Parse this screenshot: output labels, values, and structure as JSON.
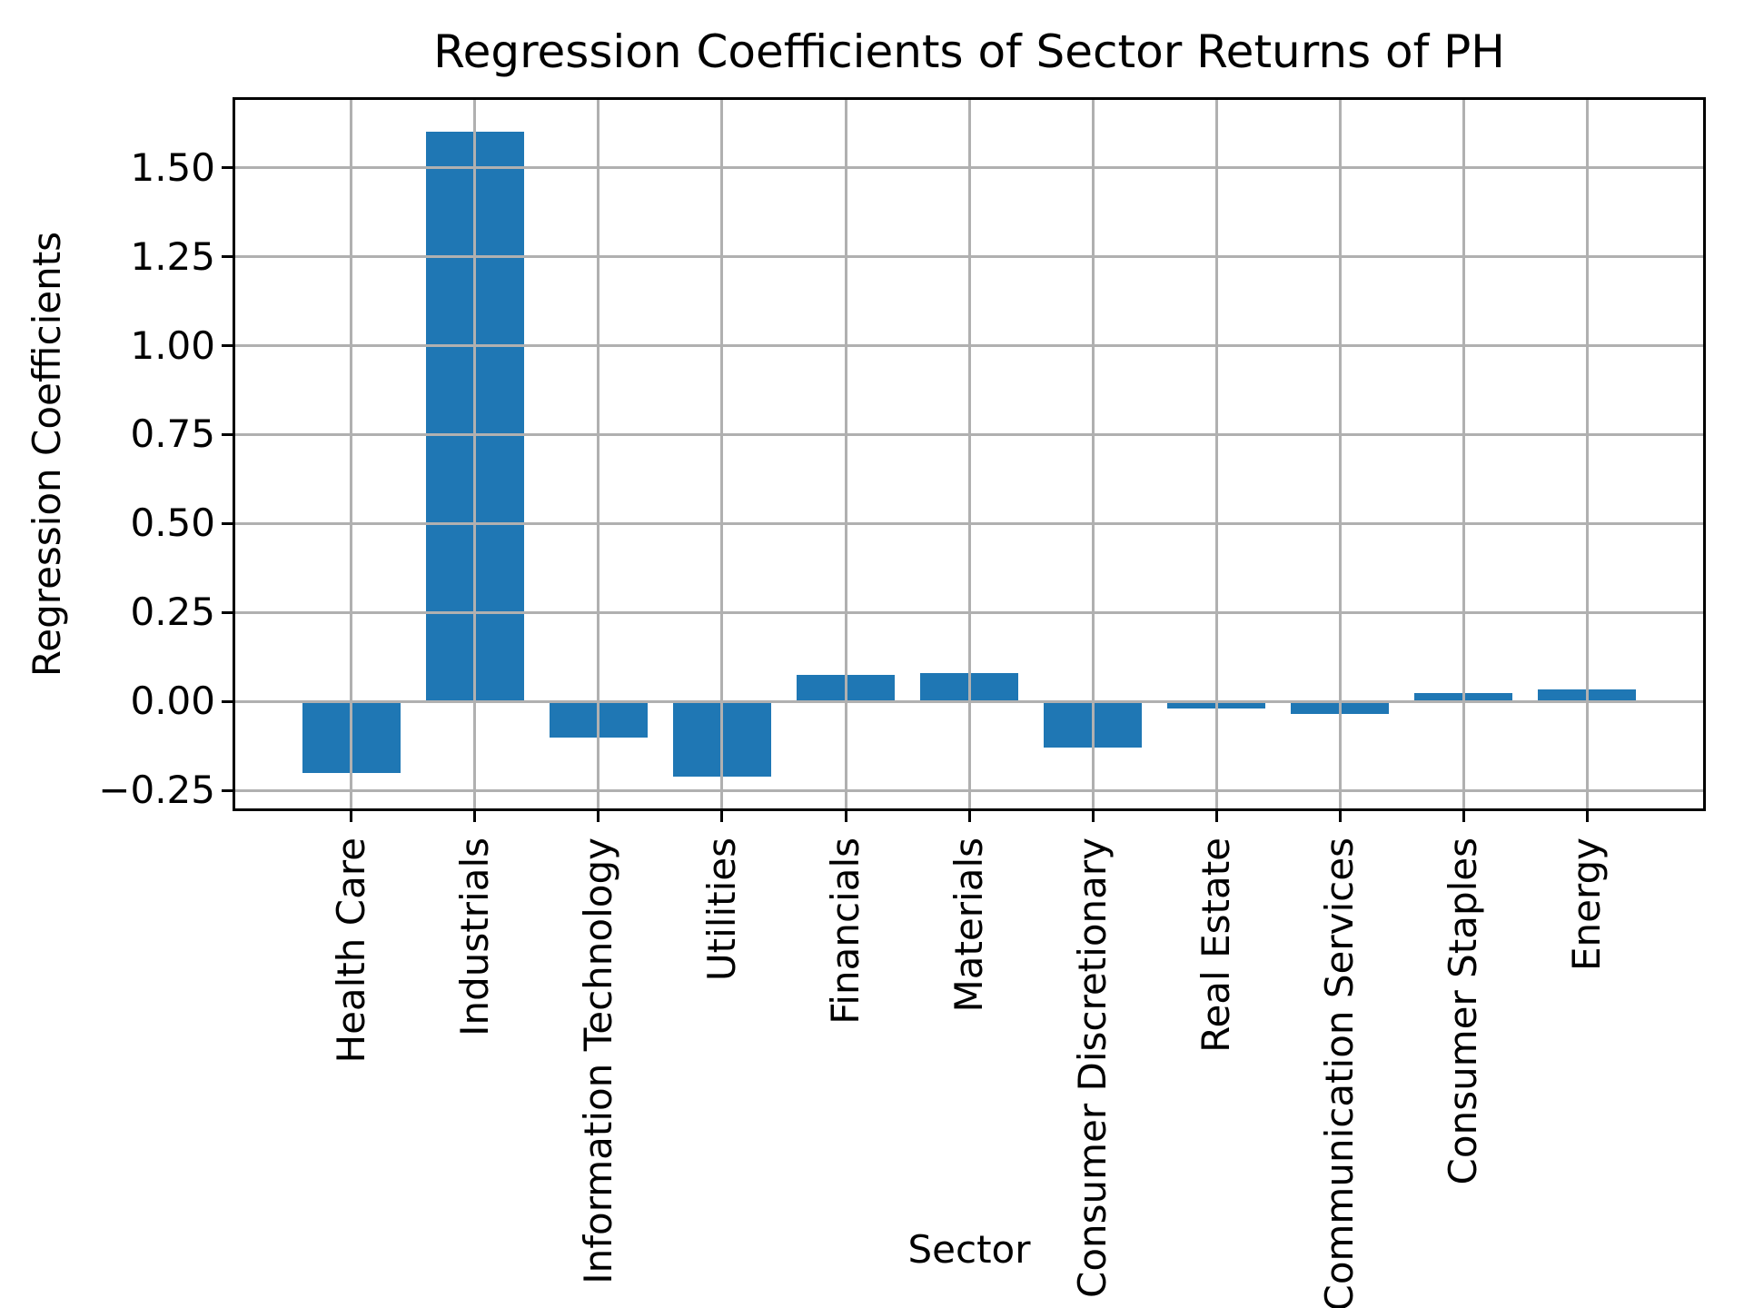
{
  "chart_data": {
    "type": "bar",
    "title": "Regression Coefficients of Sector Returns of PH",
    "xlabel": "Sector",
    "ylabel": "Regression Coefficients",
    "categories": [
      "Health Care",
      "Industrials",
      "Information Technology",
      "Utilities",
      "Financials",
      "Materials",
      "Consumer Discretionary",
      "Real Estate",
      "Communication Services",
      "Consumer Staples",
      "Energy"
    ],
    "values": [
      -0.2,
      1.6,
      -0.1,
      -0.21,
      0.075,
      0.08,
      -0.13,
      -0.02,
      -0.035,
      0.025,
      0.035
    ],
    "ylim": [
      -0.3,
      1.69
    ],
    "ytick_values": [
      -0.25,
      0.0,
      0.25,
      0.5,
      0.75,
      1.0,
      1.25,
      1.5
    ],
    "ytick_labels": [
      "−0.25",
      "0.00",
      "0.25",
      "0.50",
      "0.75",
      "1.00",
      "1.25",
      "1.50"
    ],
    "grid": true,
    "legend_position": "none",
    "xtick_rotation_deg": 90,
    "colors": {
      "bar": "#1f77b4",
      "grid": "#b0b0b0",
      "spine": "#000000",
      "text": "#000000",
      "background": "#ffffff"
    }
  }
}
